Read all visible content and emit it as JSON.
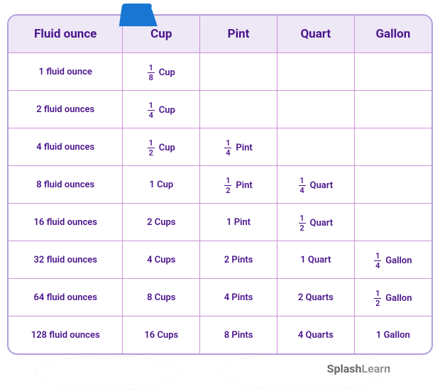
{
  "table": {
    "headers": [
      "Fluid ounce",
      "Cup",
      "Pint",
      "Quart",
      "Gallon"
    ],
    "header_bg": "#ede7f6",
    "border_color": "#ce93d8",
    "outer_border_color": "#b39ddb",
    "text_color": "#4a148c",
    "tab_color": "#1976d2",
    "column_keys": [
      "oz",
      "cup",
      "pint",
      "quart",
      "gallon"
    ],
    "rows": [
      {
        "oz": "1 fluid ounce",
        "cup": {
          "n": 1,
          "d": 8,
          "u": "Cup"
        },
        "pint": null,
        "quart": null,
        "gallon": null
      },
      {
        "oz": "2 fluid ounces",
        "cup": {
          "n": 1,
          "d": 4,
          "u": "Cup"
        },
        "pint": null,
        "quart": null,
        "gallon": null
      },
      {
        "oz": "4 fluid ounces",
        "cup": {
          "n": 1,
          "d": 2,
          "u": "Cup"
        },
        "pint": {
          "n": 1,
          "d": 4,
          "u": "Pint"
        },
        "quart": null,
        "gallon": null
      },
      {
        "oz": "8 fluid ounces",
        "cup": "1 Cup",
        "pint": {
          "n": 1,
          "d": 2,
          "u": "Pint"
        },
        "quart": {
          "n": 1,
          "d": 4,
          "u": "Quart"
        },
        "gallon": null
      },
      {
        "oz": "16 fluid ounces",
        "cup": "2 Cups",
        "pint": "1 Pint",
        "quart": {
          "n": 1,
          "d": 2,
          "u": "Quart"
        },
        "gallon": null
      },
      {
        "oz": "32 fluid ounces",
        "cup": "4 Cups",
        "pint": "2 Pints",
        "quart": "1 Quart",
        "gallon": {
          "n": 1,
          "d": 4,
          "u": "Gallon"
        }
      },
      {
        "oz": "64 fluid ounces",
        "cup": "8 Cups",
        "pint": "4 Pints",
        "quart": "2 Quarts",
        "gallon": {
          "n": 1,
          "d": 2,
          "u": "Gallon"
        }
      },
      {
        "oz": "128 fluid ounces",
        "cup": "16 Cups",
        "pint": "8 Pints",
        "quart": "4 Quarts",
        "gallon": "1 Gallon"
      }
    ]
  },
  "brand": {
    "bold": "Splash",
    "light": "Learn"
  }
}
